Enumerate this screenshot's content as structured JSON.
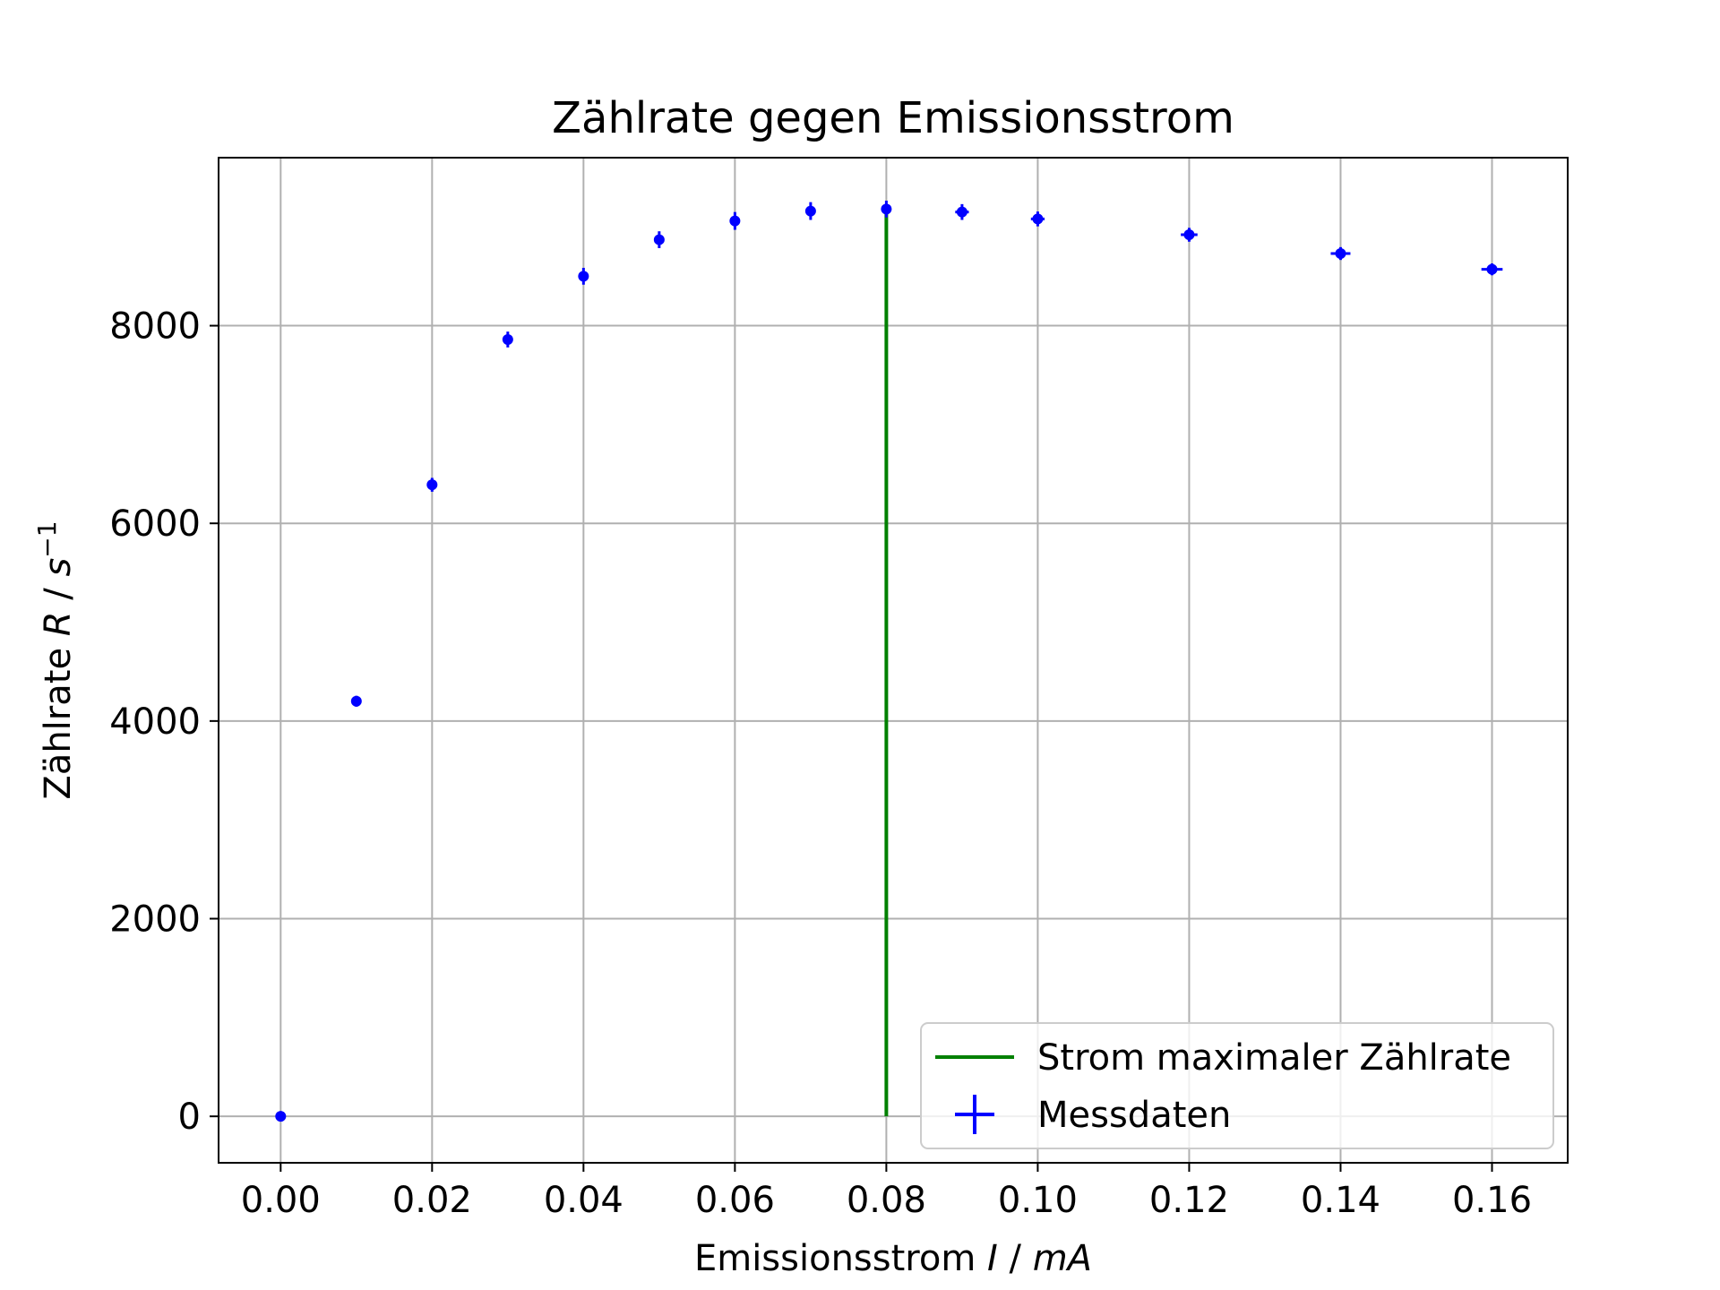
{
  "chart_data": {
    "type": "scatter",
    "title": "Zählrate gegen Emissionsstrom",
    "xlabel": {
      "prefix": "Emissionsstrom ",
      "var": "I",
      "sep": " / ",
      "unit": "mA"
    },
    "ylabel": {
      "prefix": "Zählrate ",
      "var": "R",
      "sep": " / ",
      "unit": "s",
      "sup": "−1"
    },
    "xlim": [
      -0.0082,
      0.17
    ],
    "ylim": [
      -470,
      9700
    ],
    "xticks": [
      0.0,
      0.02,
      0.04,
      0.06,
      0.08,
      0.1,
      0.12,
      0.14,
      0.16
    ],
    "xtick_labels": [
      "0.00",
      "0.02",
      "0.04",
      "0.06",
      "0.08",
      "0.10",
      "0.12",
      "0.14",
      "0.16"
    ],
    "yticks": [
      0,
      2000,
      4000,
      6000,
      8000
    ],
    "ytick_labels": [
      "0",
      "2000",
      "4000",
      "6000",
      "8000"
    ],
    "grid": true,
    "legend_position": "lower right",
    "series": [
      {
        "name": "Messdaten",
        "kind": "errorbar",
        "color": "#0000ff",
        "x": [
          0.0,
          0.01,
          0.02,
          0.03,
          0.04,
          0.05,
          0.06,
          0.07,
          0.08,
          0.09,
          0.1,
          0.12,
          0.14,
          0.16
        ],
        "y": [
          0,
          4200,
          6390,
          7860,
          8500,
          8870,
          9060,
          9160,
          9180,
          9150,
          9080,
          8920,
          8730,
          8570
        ],
        "xerr": [
          0.0002,
          0.0004,
          0.0004,
          0.0004,
          0.0004,
          0.0004,
          0.0004,
          0.0004,
          0.0005,
          0.0009,
          0.0009,
          0.0011,
          0.0013,
          0.0014
        ],
        "yerr": [
          0,
          55,
          70,
          80,
          85,
          85,
          90,
          90,
          85,
          80,
          75,
          70,
          65,
          60
        ]
      },
      {
        "name": "Strom maximaler Zählrate",
        "kind": "vline",
        "color": "#008000",
        "x": 0.08,
        "ymin": 0,
        "ymax": 9180
      }
    ]
  }
}
